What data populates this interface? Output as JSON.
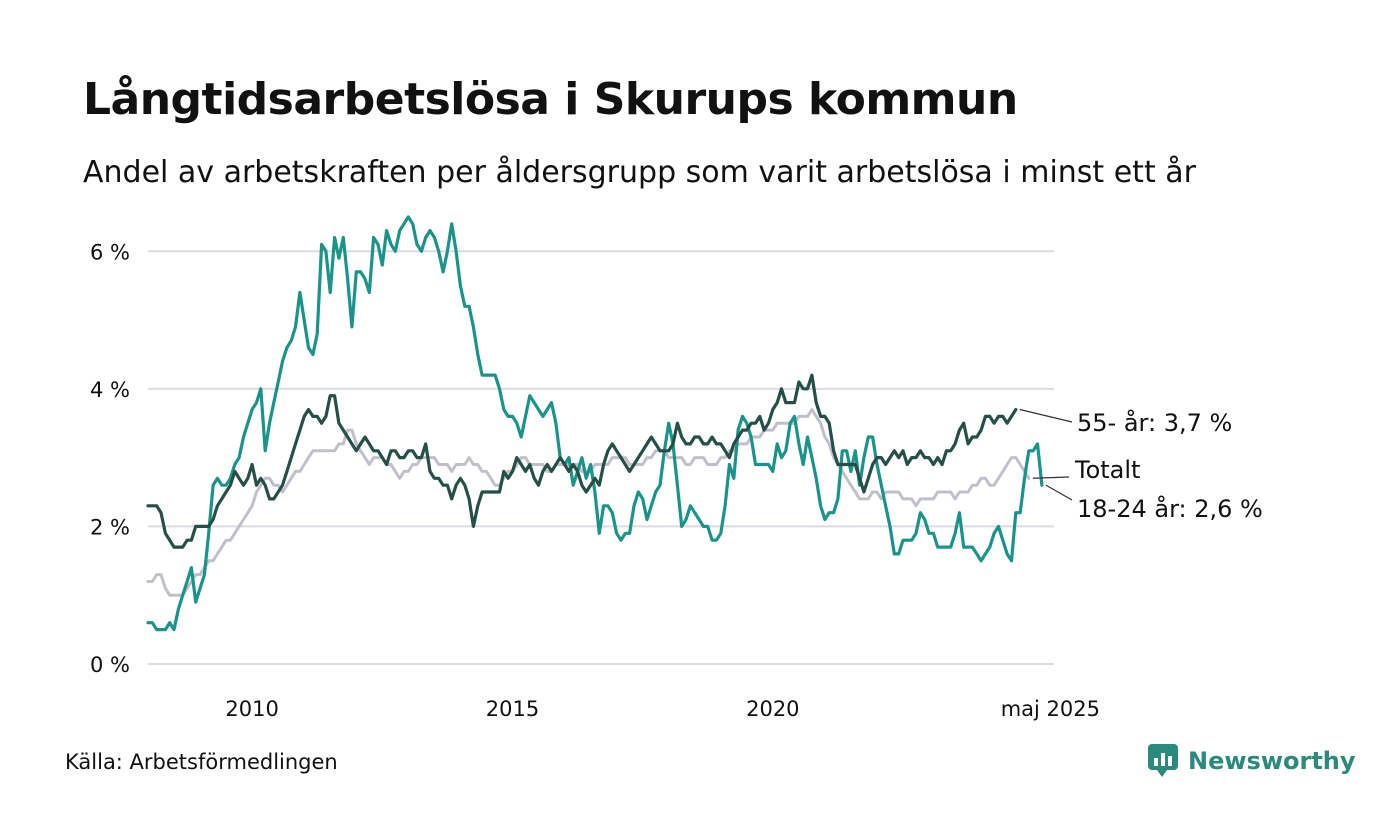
{
  "header": {
    "title": "Långtidsarbetslösa i Skurups kommun",
    "subtitle": "Andel av arbetskraften per åldersgrupp som varit arbetslösa i minst ett år"
  },
  "footer": {
    "source": "Källa: Arbetsförmedlingen",
    "brand": "Newsworthy",
    "brand_icon": "newsworthy-logo-icon",
    "brand_color": "#2a8a7c"
  },
  "chart_data": {
    "type": "line",
    "title": "Långtidsarbetslösa i Skurups kommun",
    "subtitle": "Andel av arbetskraften per åldersgrupp som varit arbetslösa i minst ett år",
    "xlabel": "",
    "ylabel": "",
    "x_start": 2008.0,
    "x_step": 0.0833333,
    "xlim": [
      2008.0,
      2025.4
    ],
    "ylim": [
      0,
      6.6
    ],
    "y_ticks": [
      0,
      2,
      4,
      6
    ],
    "y_tick_labels": [
      "0 %",
      "2 %",
      "4 %",
      "6 %"
    ],
    "x_ticks": [
      2010,
      2015,
      2020,
      2025.33
    ],
    "x_tick_labels": [
      "2010",
      "2015",
      "2020",
      "maj 2025"
    ],
    "grid": "horizontal",
    "legend": "direct labels at right end",
    "series": [
      {
        "name": "Totalt",
        "label": "Totalt",
        "color": "#c2bfcc",
        "values": [
          1.2,
          1.2,
          1.3,
          1.3,
          1.1,
          1.0,
          1.0,
          1.0,
          1.0,
          1.1,
          1.2,
          1.3,
          1.3,
          1.4,
          1.5,
          1.5,
          1.6,
          1.7,
          1.8,
          1.8,
          1.9,
          2.0,
          2.1,
          2.2,
          2.3,
          2.5,
          2.6,
          2.7,
          2.7,
          2.6,
          2.6,
          2.5,
          2.6,
          2.7,
          2.8,
          2.8,
          2.9,
          3.0,
          3.1,
          3.1,
          3.1,
          3.1,
          3.1,
          3.1,
          3.2,
          3.2,
          3.4,
          3.4,
          3.2,
          3.1,
          3.0,
          2.9,
          3.0,
          3.0,
          3.0,
          2.9,
          2.9,
          2.8,
          2.7,
          2.8,
          2.8,
          2.9,
          2.9,
          3.0,
          3.0,
          3.0,
          3.0,
          2.9,
          2.9,
          2.9,
          2.8,
          2.9,
          2.9,
          2.9,
          3.0,
          2.9,
          2.9,
          2.8,
          2.8,
          2.7,
          2.6,
          2.6,
          2.7,
          2.8,
          2.8,
          2.9,
          3.0,
          3.0,
          2.9,
          2.9,
          2.9,
          2.9,
          2.8,
          2.8,
          2.9,
          2.9,
          2.9,
          2.9,
          2.9,
          2.9,
          2.8,
          2.8,
          2.8,
          2.9,
          2.9,
          2.9,
          2.9,
          3.0,
          3.0,
          3.0,
          3.0,
          2.9,
          2.9,
          2.9,
          2.9,
          3.0,
          3.0,
          3.1,
          3.1,
          3.1,
          3.0,
          3.0,
          3.0,
          3.0,
          2.9,
          2.9,
          3.0,
          3.0,
          3.0,
          2.9,
          2.9,
          2.9,
          3.0,
          3.0,
          3.1,
          3.1,
          3.2,
          3.2,
          3.2,
          3.3,
          3.3,
          3.3,
          3.4,
          3.4,
          3.4,
          3.5,
          3.5,
          3.5,
          3.5,
          3.5,
          3.6,
          3.6,
          3.6,
          3.7,
          3.6,
          3.5,
          3.3,
          3.2,
          3.0,
          2.9,
          2.8,
          2.7,
          2.6,
          2.5,
          2.4,
          2.4,
          2.4,
          2.5,
          2.5,
          2.4,
          2.5,
          2.5,
          2.5,
          2.5,
          2.4,
          2.4,
          2.4,
          2.3,
          2.4,
          2.4,
          2.4,
          2.4,
          2.5,
          2.5,
          2.5,
          2.5,
          2.4,
          2.5,
          2.5,
          2.5,
          2.6,
          2.6,
          2.7,
          2.7,
          2.6,
          2.6,
          2.7,
          2.8,
          2.9,
          3.0,
          3.0,
          2.9,
          2.8,
          2.7
        ]
      },
      {
        "name": "18-24 år",
        "label": "18-24 år: 2,6 %",
        "color": "#1a9488",
        "values": [
          0.6,
          0.6,
          0.5,
          0.5,
          0.5,
          0.6,
          0.5,
          0.8,
          1.0,
          1.2,
          1.4,
          0.9,
          1.1,
          1.3,
          1.9,
          2.6,
          2.7,
          2.6,
          2.6,
          2.7,
          2.9,
          3.0,
          3.3,
          3.5,
          3.7,
          3.8,
          4.0,
          3.1,
          3.5,
          3.8,
          4.1,
          4.4,
          4.6,
          4.7,
          4.9,
          5.4,
          5.0,
          4.6,
          4.5,
          4.8,
          6.1,
          6.0,
          5.4,
          6.2,
          5.9,
          6.2,
          5.6,
          4.9,
          5.7,
          5.7,
          5.6,
          5.4,
          6.2,
          6.1,
          5.8,
          6.3,
          6.1,
          6.0,
          6.3,
          6.4,
          6.5,
          6.4,
          6.1,
          6.0,
          6.2,
          6.3,
          6.2,
          6.0,
          5.7,
          6.0,
          6.4,
          6.0,
          5.5,
          5.2,
          5.2,
          4.9,
          4.5,
          4.2,
          4.2,
          4.2,
          4.2,
          4.0,
          3.7,
          3.6,
          3.6,
          3.5,
          3.3,
          3.6,
          3.9,
          3.8,
          3.7,
          3.6,
          3.7,
          3.8,
          3.5,
          3.0,
          2.9,
          3.0,
          2.6,
          2.8,
          3.0,
          2.7,
          2.9,
          2.5,
          1.9,
          2.3,
          2.3,
          2.2,
          1.9,
          1.8,
          1.9,
          1.9,
          2.3,
          2.5,
          2.4,
          2.1,
          2.3,
          2.5,
          2.6,
          3.1,
          3.5,
          3.2,
          2.6,
          2.0,
          2.1,
          2.3,
          2.2,
          2.1,
          2.0,
          2.0,
          1.8,
          1.8,
          1.9,
          2.3,
          2.9,
          2.7,
          3.4,
          3.6,
          3.5,
          3.3,
          2.9,
          2.9,
          2.9,
          2.9,
          2.8,
          3.2,
          3.0,
          3.1,
          3.5,
          3.6,
          3.2,
          2.9,
          3.3,
          3.0,
          2.7,
          2.3,
          2.1,
          2.2,
          2.2,
          2.4,
          3.1,
          3.1,
          2.8,
          3.1,
          2.6,
          3.0,
          3.3,
          3.3,
          2.9,
          2.6,
          2.3,
          2.0,
          1.6,
          1.6,
          1.8,
          1.8,
          1.8,
          1.9,
          2.2,
          2.1,
          1.9,
          1.9,
          1.7,
          1.7,
          1.7,
          1.7,
          1.9,
          2.2,
          1.7,
          1.7,
          1.7,
          1.6,
          1.5,
          1.6,
          1.7,
          1.9,
          2.0,
          1.8,
          1.6,
          1.5,
          2.2,
          2.2,
          2.7,
          3.1,
          3.1,
          3.2,
          2.6
        ]
      },
      {
        "name": "55- år",
        "label": "55- år: 3,7 %",
        "color": "#254f47",
        "values": [
          2.3,
          2.3,
          2.3,
          2.2,
          1.9,
          1.8,
          1.7,
          1.7,
          1.7,
          1.8,
          1.8,
          2.0,
          2.0,
          2.0,
          2.0,
          2.1,
          2.3,
          2.4,
          2.5,
          2.6,
          2.8,
          2.7,
          2.6,
          2.7,
          2.9,
          2.6,
          2.7,
          2.6,
          2.4,
          2.4,
          2.5,
          2.6,
          2.8,
          3.0,
          3.2,
          3.4,
          3.6,
          3.7,
          3.6,
          3.6,
          3.5,
          3.6,
          3.9,
          3.9,
          3.5,
          3.4,
          3.3,
          3.2,
          3.1,
          3.2,
          3.3,
          3.2,
          3.1,
          3.1,
          3.0,
          2.9,
          3.1,
          3.1,
          3.0,
          3.0,
          3.1,
          3.1,
          3.0,
          3.0,
          3.2,
          2.8,
          2.7,
          2.7,
          2.6,
          2.6,
          2.4,
          2.6,
          2.7,
          2.6,
          2.4,
          2.0,
          2.3,
          2.5,
          2.5,
          2.5,
          2.5,
          2.5,
          2.8,
          2.7,
          2.8,
          3.0,
          2.9,
          2.8,
          2.9,
          2.7,
          2.6,
          2.8,
          2.9,
          2.8,
          2.9,
          3.0,
          2.9,
          2.8,
          2.9,
          2.8,
          2.6,
          2.5,
          2.6,
          2.7,
          2.6,
          2.9,
          3.1,
          3.2,
          3.1,
          3.0,
          2.9,
          2.8,
          2.9,
          3.0,
          3.1,
          3.2,
          3.3,
          3.2,
          3.1,
          3.1,
          3.1,
          3.2,
          3.5,
          3.3,
          3.2,
          3.2,
          3.3,
          3.3,
          3.2,
          3.2,
          3.3,
          3.2,
          3.2,
          3.1,
          3.0,
          3.2,
          3.3,
          3.4,
          3.4,
          3.5,
          3.5,
          3.6,
          3.4,
          3.5,
          3.7,
          3.8,
          4.0,
          3.8,
          3.8,
          3.8,
          4.1,
          4.0,
          4.0,
          4.2,
          3.8,
          3.6,
          3.6,
          3.5,
          3.1,
          2.9,
          2.9,
          2.9,
          2.9,
          2.9,
          2.7,
          2.5,
          2.7,
          2.9,
          3.0,
          3.0,
          2.9,
          3.0,
          3.1,
          3.0,
          3.1,
          2.9,
          3.0,
          3.0,
          3.1,
          3.0,
          3.0,
          2.9,
          3.0,
          2.9,
          3.1,
          3.1,
          3.2,
          3.4,
          3.5,
          3.2,
          3.3,
          3.3,
          3.4,
          3.6,
          3.6,
          3.5,
          3.6,
          3.6,
          3.5,
          3.6,
          3.7
        ]
      }
    ]
  }
}
